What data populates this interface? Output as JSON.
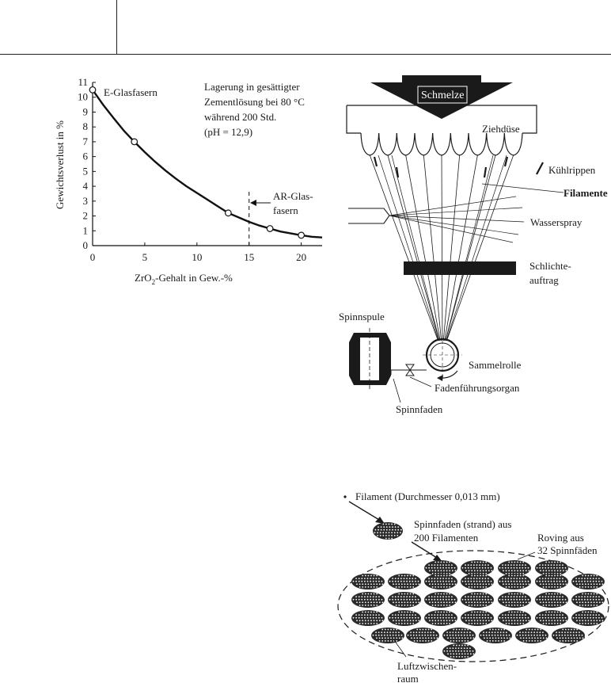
{
  "chart_data": {
    "type": "line",
    "ylabel": "Gewichtsverlust in %",
    "xlabel_main": "ZrO",
    "xlabel_sub": "2",
    "xlabel_rest": "-Gehalt in Gew.-%",
    "xlim": [
      0,
      22
    ],
    "ylim": [
      0,
      11
    ],
    "x_ticks": [
      0,
      5,
      10,
      15,
      20
    ],
    "y_ticks": [
      0,
      1,
      2,
      3,
      4,
      5,
      6,
      7,
      8,
      9,
      10,
      11
    ],
    "points": [
      {
        "x": 0,
        "y": 10.5
      },
      {
        "x": 4,
        "y": 7.0
      },
      {
        "x": 13,
        "y": 2.2
      },
      {
        "x": 17,
        "y": 1.15
      },
      {
        "x": 20,
        "y": 0.7
      }
    ],
    "curve": [
      {
        "x": 0,
        "y": 10.5
      },
      {
        "x": 1,
        "y": 9.5
      },
      {
        "x": 2,
        "y": 8.6
      },
      {
        "x": 3,
        "y": 7.75
      },
      {
        "x": 4,
        "y": 7.0
      },
      {
        "x": 5,
        "y": 6.3
      },
      {
        "x": 6,
        "y": 5.65
      },
      {
        "x": 7,
        "y": 5.05
      },
      {
        "x": 8,
        "y": 4.5
      },
      {
        "x": 9,
        "y": 4.0
      },
      {
        "x": 10,
        "y": 3.55
      },
      {
        "x": 11,
        "y": 3.1
      },
      {
        "x": 12,
        "y": 2.65
      },
      {
        "x": 13,
        "y": 2.2
      },
      {
        "x": 14,
        "y": 1.9
      },
      {
        "x": 15,
        "y": 1.6
      },
      {
        "x": 16,
        "y": 1.35
      },
      {
        "x": 17,
        "y": 1.15
      },
      {
        "x": 18,
        "y": 0.95
      },
      {
        "x": 19,
        "y": 0.82
      },
      {
        "x": 20,
        "y": 0.7
      },
      {
        "x": 21,
        "y": 0.6
      },
      {
        "x": 22,
        "y": 0.55
      }
    ],
    "marker_x": 15,
    "series_label": "E-Glasfasern",
    "annotation_lines": [
      "Lagerung in gesättigter",
      "Zementlösung bei 80 °C",
      "während 200 Std.",
      "(pH = 12,9)"
    ],
    "ar_label_lines": [
      "AR-Glas-",
      "fasern"
    ],
    "grid": false
  },
  "diagram_spinning": {
    "labels": {
      "schmelze": "Schmelze",
      "ziehduese": "Ziehdüse",
      "kuehlrippen": "Kühlrippen",
      "filamente": "Filamente",
      "wasserspray": "Wasserspray",
      "schlichte_1": "Schlichte-",
      "schlichte_2": "auftrag",
      "spinnspule": "Spinnspule",
      "sammelrolle": "Sammelrolle",
      "fadenfuehrung": "Fadenführungsorgan",
      "spinnfaden": "Spinnfaden"
    }
  },
  "diagram_roving": {
    "labels": {
      "filament": "Filament (Durchmesser 0,013 mm)",
      "strand_1": "Spinnfaden (strand) aus",
      "strand_2": "200 Filamenten",
      "roving_1": "Roving aus",
      "roving_2": "32 Spinnfäden",
      "luft_1": "Luftzwischen-",
      "luft_2": "raum"
    }
  }
}
